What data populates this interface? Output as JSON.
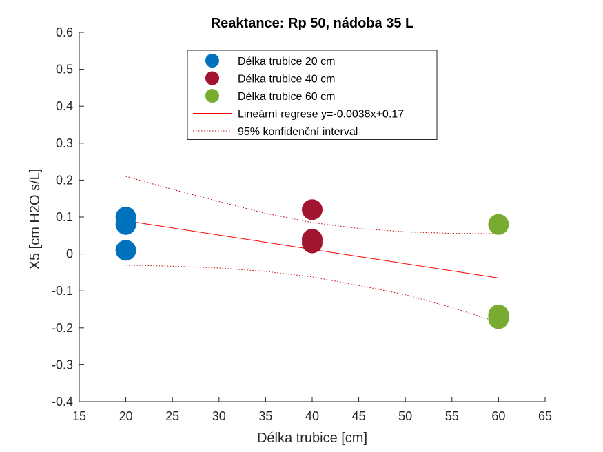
{
  "chart_data": {
    "type": "scatter",
    "title": "Reaktance: Rp 50, nádoba 35 L",
    "xlabel": "Délka trubice [cm]",
    "ylabel": "X5 [cm H2O s/L]",
    "xlim": [
      15,
      65
    ],
    "ylim": [
      -0.4,
      0.6
    ],
    "xticks": [
      15,
      20,
      25,
      30,
      35,
      40,
      45,
      50,
      55,
      60,
      65
    ],
    "yticks": [
      -0.4,
      -0.3,
      -0.2,
      -0.1,
      0,
      0.1,
      0.2,
      0.3,
      0.4,
      0.5,
      0.6
    ],
    "grid": false,
    "legend_position": "top-center",
    "series": [
      {
        "name": "Délka trubice 20 cm",
        "kind": "scatter",
        "color": "#0072BD",
        "points": [
          [
            20,
            0.1
          ],
          [
            20,
            0.08
          ],
          [
            20,
            0.01
          ]
        ]
      },
      {
        "name": "Délka trubice 40 cm",
        "kind": "scatter",
        "color": "#A2142F",
        "points": [
          [
            40,
            0.12
          ],
          [
            40,
            0.04
          ],
          [
            40,
            0.03
          ]
        ]
      },
      {
        "name": "Délka trubice 60 cm",
        "kind": "scatter",
        "color": "#77AC30",
        "points": [
          [
            60,
            0.08
          ],
          [
            60,
            -0.165
          ],
          [
            60,
            -0.175
          ]
        ]
      },
      {
        "name": "Lineární regrese y=-0.0038x+0.17",
        "kind": "line",
        "color": "#FF0000",
        "dash": "solid",
        "points": [
          [
            20,
            0.09
          ],
          [
            60,
            -0.065
          ]
        ]
      },
      {
        "name": "95% konfidenční interval",
        "kind": "line",
        "color": "#C00000",
        "dash": "dotted",
        "points": [
          [
            20,
            0.21
          ],
          [
            25,
            0.175
          ],
          [
            30,
            0.142
          ],
          [
            35,
            0.11
          ],
          [
            40,
            0.085
          ],
          [
            45,
            0.069
          ],
          [
            50,
            0.06
          ],
          [
            55,
            0.056
          ],
          [
            60,
            0.055
          ]
        ]
      },
      {
        "name": "",
        "kind": "line",
        "color": "#C00000",
        "dash": "dotted",
        "legend": false,
        "points": [
          [
            20,
            -0.03
          ],
          [
            25,
            -0.033
          ],
          [
            30,
            -0.038
          ],
          [
            35,
            -0.047
          ],
          [
            40,
            -0.062
          ],
          [
            45,
            -0.085
          ],
          [
            50,
            -0.11
          ],
          [
            55,
            -0.145
          ],
          [
            60,
            -0.185
          ]
        ]
      }
    ]
  }
}
